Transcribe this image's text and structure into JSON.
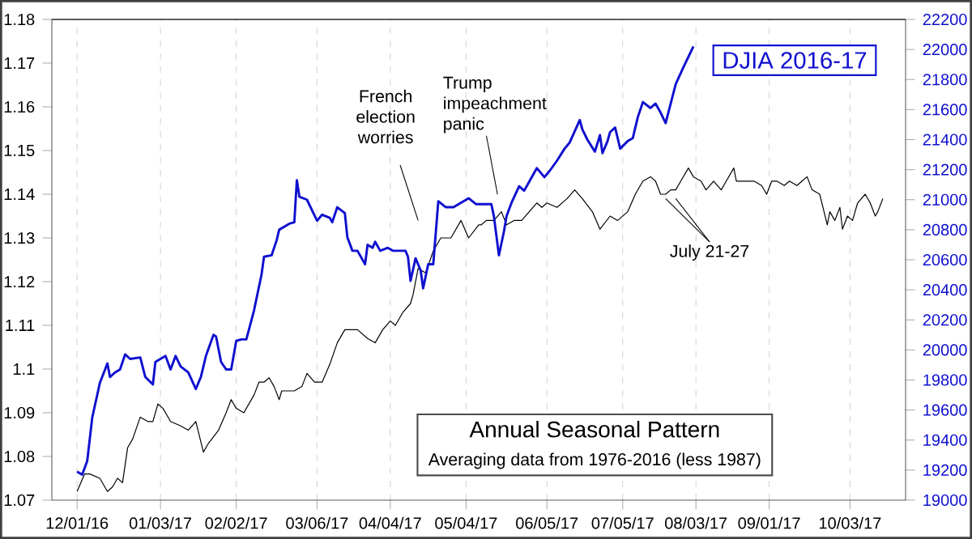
{
  "chart_data": {
    "type": "line",
    "title": "Annual Seasonal Pattern",
    "subtitle": "Averaging data from 1976-2016 (less 1987)",
    "xlim": [
      "2016-11-21",
      "2017-10-25"
    ],
    "xticks": [
      {
        "value": "2016-12-01",
        "label": "12/01/16"
      },
      {
        "value": "2017-01-03",
        "label": "01/03/17"
      },
      {
        "value": "2017-02-02",
        "label": "02/02/17"
      },
      {
        "value": "2017-03-06",
        "label": "03/06/17"
      },
      {
        "value": "2017-04-04",
        "label": "04/04/17"
      },
      {
        "value": "2017-05-04",
        "label": "05/04/17"
      },
      {
        "value": "2017-06-05",
        "label": "06/05/17"
      },
      {
        "value": "2017-07-05",
        "label": "07/05/17"
      },
      {
        "value": "2017-08-03",
        "label": "08/03/17"
      },
      {
        "value": "2017-09-01",
        "label": "09/01/17"
      },
      {
        "value": "2017-10-03",
        "label": "10/03/17"
      }
    ],
    "ylim": [
      1.07,
      1.18
    ],
    "yticks": [
      1.07,
      1.08,
      1.09,
      1.1,
      1.11,
      1.12,
      1.13,
      1.14,
      1.15,
      1.16,
      1.17,
      1.18
    ],
    "y2lim": [
      19000,
      22200
    ],
    "y2ticks": [
      19000,
      19200,
      19400,
      19600,
      19800,
      20000,
      20200,
      20400,
      20600,
      20800,
      21000,
      21200,
      21400,
      21600,
      21800,
      22000,
      22200
    ],
    "grid": "x",
    "legend": "top right",
    "series": [
      {
        "color": "#000000",
        "x": [
          "2016-12-01",
          "2016-12-04",
          "2016-12-06",
          "2016-12-10",
          "2016-12-13",
          "2016-12-15",
          "2016-12-17",
          "2016-12-19",
          "2016-12-21",
          "2016-12-23",
          "2016-12-26",
          "2016-12-29",
          "2016-12-31",
          "2017-01-02",
          "2017-01-04",
          "2017-01-07",
          "2017-01-11",
          "2017-01-14",
          "2017-01-17",
          "2017-01-20",
          "2017-01-22",
          "2017-01-26",
          "2017-01-29",
          "2017-01-31",
          "2017-02-02",
          "2017-02-05",
          "2017-02-09",
          "2017-02-11",
          "2017-02-13",
          "2017-02-15",
          "2017-02-17",
          "2017-02-19",
          "2017-02-20",
          "2017-02-25",
          "2017-02-28",
          "2017-03-02",
          "2017-03-05",
          "2017-03-08",
          "2017-03-11",
          "2017-03-14",
          "2017-03-17",
          "2017-03-19",
          "2017-03-22",
          "2017-03-26",
          "2017-03-29",
          "2017-04-01",
          "2017-04-04",
          "2017-04-06",
          "2017-04-09",
          "2017-04-12",
          "2017-04-13",
          "2017-04-15",
          "2017-04-18",
          "2017-04-21",
          "2017-04-24",
          "2017-04-28",
          "2017-05-02",
          "2017-05-05",
          "2017-05-09",
          "2017-05-10",
          "2017-05-12",
          "2017-05-15",
          "2017-05-18",
          "2017-05-20",
          "2017-05-23",
          "2017-05-26",
          "2017-05-29",
          "2017-06-01",
          "2017-06-03",
          "2017-06-05",
          "2017-06-09",
          "2017-06-13",
          "2017-06-16",
          "2017-06-19",
          "2017-06-23",
          "2017-06-26",
          "2017-06-30",
          "2017-07-03",
          "2017-07-07",
          "2017-07-10",
          "2017-07-13",
          "2017-07-16",
          "2017-07-18",
          "2017-07-20",
          "2017-07-22",
          "2017-07-24",
          "2017-07-26",
          "2017-07-28",
          "2017-07-31",
          "2017-08-02",
          "2017-08-05",
          "2017-08-07",
          "2017-08-10",
          "2017-08-13",
          "2017-08-15",
          "2017-08-18",
          "2017-08-19",
          "2017-08-23",
          "2017-08-26",
          "2017-08-29",
          "2017-08-31",
          "2017-09-02",
          "2017-09-04",
          "2017-09-07",
          "2017-09-09",
          "2017-09-12",
          "2017-09-14",
          "2017-09-16",
          "2017-09-18",
          "2017-09-21",
          "2017-09-24",
          "2017-09-25",
          "2017-09-27",
          "2017-09-29",
          "2017-09-30",
          "2017-10-02",
          "2017-10-04",
          "2017-10-06",
          "2017-10-09",
          "2017-10-11",
          "2017-10-13",
          "2017-10-14",
          "2017-10-16"
        ],
        "values": [
          1.072,
          1.076,
          1.076,
          1.075,
          1.072,
          1.073,
          1.075,
          1.074,
          1.082,
          1.084,
          1.089,
          1.088,
          1.088,
          1.092,
          1.091,
          1.088,
          1.087,
          1.086,
          1.088,
          1.081,
          1.083,
          1.086,
          1.09,
          1.093,
          1.091,
          1.09,
          1.094,
          1.097,
          1.097,
          1.098,
          1.096,
          1.093,
          1.095,
          1.095,
          1.096,
          1.099,
          1.097,
          1.097,
          1.101,
          1.106,
          1.109,
          1.109,
          1.109,
          1.107,
          1.106,
          1.109,
          1.111,
          1.11,
          1.113,
          1.115,
          1.117,
          1.123,
          1.122,
          1.127,
          1.13,
          1.13,
          1.134,
          1.13,
          1.133,
          1.133,
          1.134,
          1.134,
          1.136,
          1.133,
          1.134,
          1.134,
          1.136,
          1.138,
          1.137,
          1.138,
          1.137,
          1.139,
          1.141,
          1.139,
          1.136,
          1.132,
          1.135,
          1.134,
          1.136,
          1.14,
          1.143,
          1.144,
          1.143,
          1.14,
          1.14,
          1.141,
          1.141,
          1.143,
          1.146,
          1.144,
          1.143,
          1.141,
          1.143,
          1.141,
          1.143,
          1.146,
          1.143,
          1.143,
          1.143,
          1.142,
          1.14,
          1.143,
          1.143,
          1.142,
          1.143,
          1.142,
          1.143,
          1.144,
          1.141,
          1.14,
          1.133,
          1.136,
          1.134,
          1.137,
          1.132,
          1.135,
          1.134,
          1.138,
          1.14,
          1.138,
          1.135,
          1.136,
          1.139
        ]
      },
      {
        "name": "DJIA 2016-17",
        "color": "#1010d0",
        "axis": "y2",
        "x": [
          "2016-12-01",
          "2016-12-03",
          "2016-12-05",
          "2016-12-07",
          "2016-12-10",
          "2016-12-13",
          "2016-12-14",
          "2016-12-16",
          "2016-12-18",
          "2016-12-20",
          "2016-12-22",
          "2016-12-26",
          "2016-12-28",
          "2016-12-31",
          "2017-01-01",
          "2017-01-03",
          "2017-01-05",
          "2017-01-07",
          "2017-01-09",
          "2017-01-11",
          "2017-01-14",
          "2017-01-17",
          "2017-01-19",
          "2017-01-21",
          "2017-01-24",
          "2017-01-25",
          "2017-01-27",
          "2017-01-29",
          "2017-01-31",
          "2017-02-02",
          "2017-02-04",
          "2017-02-06",
          "2017-02-09",
          "2017-02-12",
          "2017-02-13",
          "2017-02-16",
          "2017-02-18",
          "2017-02-19",
          "2017-02-23",
          "2017-02-25",
          "2017-02-26",
          "2017-02-27",
          "2017-03-02",
          "2017-03-04",
          "2017-03-06",
          "2017-03-08",
          "2017-03-11",
          "2017-03-12",
          "2017-03-14",
          "2017-03-17",
          "2017-03-18",
          "2017-03-20",
          "2017-03-22",
          "2017-03-25",
          "2017-03-26",
          "2017-03-28",
          "2017-03-29",
          "2017-03-31",
          "2017-04-03",
          "2017-04-05",
          "2017-04-10",
          "2017-04-11",
          "2017-04-12",
          "2017-04-14",
          "2017-04-16",
          "2017-04-17",
          "2017-04-19",
          "2017-04-21",
          "2017-04-23",
          "2017-04-26",
          "2017-04-29",
          "2017-05-05",
          "2017-05-08",
          "2017-05-12",
          "2017-05-14",
          "2017-05-15",
          "2017-05-17",
          "2017-05-19",
          "2017-05-20",
          "2017-05-22",
          "2017-05-25",
          "2017-05-27",
          "2017-05-29",
          "2017-06-01",
          "2017-06-04",
          "2017-06-06",
          "2017-06-09",
          "2017-06-12",
          "2017-06-14",
          "2017-06-18",
          "2017-06-19",
          "2017-06-21",
          "2017-06-24",
          "2017-06-26",
          "2017-06-27",
          "2017-06-29",
          "2017-06-30",
          "2017-07-02",
          "2017-07-04",
          "2017-07-07",
          "2017-07-09",
          "2017-07-11",
          "2017-07-13",
          "2017-07-16",
          "2017-07-18",
          "2017-07-20",
          "2017-07-22",
          "2017-07-26",
          "2017-07-29",
          "2017-08-02"
        ],
        "values": [
          19190,
          19170,
          19260,
          19550,
          19780,
          19910,
          19820,
          19850,
          19870,
          19970,
          19940,
          19950,
          19820,
          19770,
          19920,
          19940,
          19960,
          19870,
          19960,
          19890,
          19850,
          19740,
          19820,
          19960,
          20100,
          20090,
          19920,
          19870,
          19870,
          20060,
          20070,
          20070,
          20260,
          20500,
          20620,
          20630,
          20730,
          20800,
          20840,
          20850,
          21130,
          21020,
          21000,
          20930,
          20860,
          20900,
          20880,
          20850,
          20950,
          20910,
          20750,
          20660,
          20660,
          20570,
          20700,
          20680,
          20720,
          20660,
          20680,
          20660,
          20660,
          20620,
          20460,
          20610,
          20530,
          20410,
          20570,
          20570,
          20990,
          20950,
          20950,
          21010,
          20970,
          20970,
          20970,
          20890,
          20630,
          20790,
          20890,
          20980,
          21090,
          21060,
          21120,
          21210,
          21150,
          21190,
          21260,
          21340,
          21380,
          21530,
          21470,
          21400,
          21320,
          21430,
          21310,
          21390,
          21450,
          21480,
          21340,
          21390,
          21410,
          21550,
          21650,
          21610,
          21640,
          21580,
          21510,
          21770,
          21880,
          22020
        ]
      }
    ],
    "annotations": [
      "French election worries",
      "Trump impeachment panic",
      {
        "text": "July 21-27",
        "x": "2017-07-24",
        "y": 1.139
      }
    ]
  }
}
